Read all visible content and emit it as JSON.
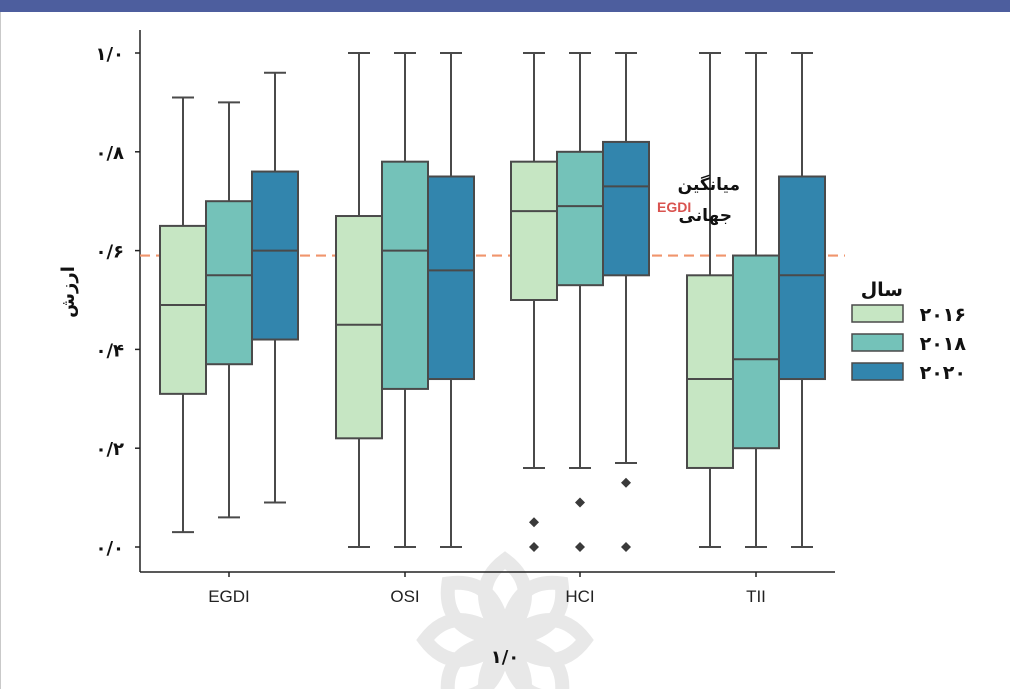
{
  "chart_data": {
    "type": "box",
    "categories": [
      "EGDI",
      "OSI",
      "HCI",
      "TII"
    ],
    "xlabel": "۱/۰",
    "ylabel": "ارزش",
    "ylim": [
      0.0,
      1.0
    ],
    "y_ticks": [
      0.0,
      0.2,
      0.4,
      0.6,
      0.8,
      1.0
    ],
    "y_tick_labels": [
      "۰/۰",
      "۰/۲",
      "۰/۴",
      "۰/۶",
      "۰/۸",
      "۱/۰"
    ],
    "legend_title": "سال",
    "legend_position": "right",
    "reference_line": {
      "value": 0.59,
      "color": "#f0956c",
      "style": "dashed"
    },
    "annotation": {
      "line1": "میانگین",
      "line2": "جهانی",
      "egdi_text": "EGDI",
      "egdi_color": "#d9534f"
    },
    "series": [
      {
        "name": "۲۰۱۶",
        "color": "#c6e6c3",
        "boxes": [
          {
            "whisker_low": 0.03,
            "q1": 0.31,
            "median": 0.49,
            "q3": 0.65,
            "whisker_high": 0.91,
            "outliers": []
          },
          {
            "whisker_low": 0.0,
            "q1": 0.22,
            "median": 0.45,
            "q3": 0.67,
            "whisker_high": 1.0,
            "outliers": []
          },
          {
            "whisker_low": 0.16,
            "q1": 0.5,
            "median": 0.68,
            "q3": 0.78,
            "whisker_high": 1.0,
            "outliers": [
              0.05,
              0.0
            ]
          },
          {
            "whisker_low": 0.0,
            "q1": 0.16,
            "median": 0.34,
            "q3": 0.55,
            "whisker_high": 1.0,
            "outliers": []
          }
        ]
      },
      {
        "name": "۲۰۱۸",
        "color": "#74c2b9",
        "boxes": [
          {
            "whisker_low": 0.06,
            "q1": 0.37,
            "median": 0.55,
            "q3": 0.7,
            "whisker_high": 0.9,
            "outliers": []
          },
          {
            "whisker_low": 0.0,
            "q1": 0.32,
            "median": 0.6,
            "q3": 0.78,
            "whisker_high": 1.0,
            "outliers": []
          },
          {
            "whisker_low": 0.16,
            "q1": 0.53,
            "median": 0.69,
            "q3": 0.8,
            "whisker_high": 1.0,
            "outliers": [
              0.09,
              0.0
            ]
          },
          {
            "whisker_low": 0.0,
            "q1": 0.2,
            "median": 0.38,
            "q3": 0.59,
            "whisker_high": 1.0,
            "outliers": []
          }
        ]
      },
      {
        "name": "۲۰۲۰",
        "color": "#3285ad",
        "boxes": [
          {
            "whisker_low": 0.09,
            "q1": 0.42,
            "median": 0.6,
            "q3": 0.76,
            "whisker_high": 0.96,
            "outliers": []
          },
          {
            "whisker_low": 0.0,
            "q1": 0.34,
            "median": 0.56,
            "q3": 0.75,
            "whisker_high": 1.0,
            "outliers": []
          },
          {
            "whisker_low": 0.17,
            "q1": 0.55,
            "median": 0.73,
            "q3": 0.82,
            "whisker_high": 1.0,
            "outliers": [
              0.13,
              0.0
            ]
          },
          {
            "whisker_low": 0.0,
            "q1": 0.34,
            "median": 0.55,
            "q3": 0.75,
            "whisker_high": 1.0,
            "outliers": []
          }
        ]
      }
    ]
  }
}
